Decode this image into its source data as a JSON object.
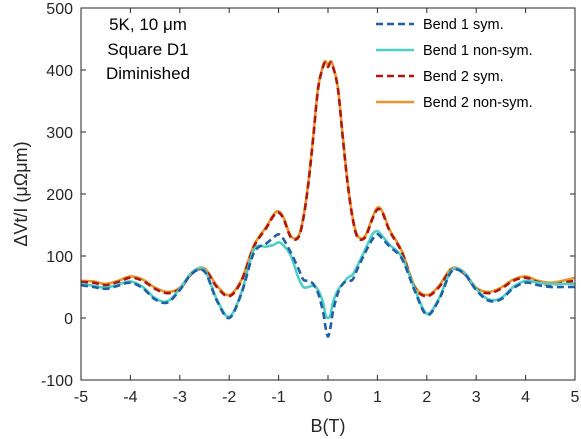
{
  "chart_data": {
    "type": "line",
    "xlabel": "B(T)",
    "ylabel": "ΔVt/I (μΩμm)",
    "xlim": [
      -5,
      5
    ],
    "ylim": [
      -100,
      500
    ],
    "xticks": [
      "-5",
      "-4",
      "-3",
      "-2",
      "-1",
      "0",
      "1",
      "2",
      "3",
      "4",
      "5"
    ],
    "yticks": [
      "-100",
      "0",
      "100",
      "200",
      "300",
      "400",
      "500"
    ],
    "annotation": [
      "5K, 10 μm",
      "Square D1",
      "Diminished"
    ],
    "legend_position": "top-right",
    "grid": false,
    "x": [
      -5,
      -4.75,
      -4.5,
      -4.25,
      -4,
      -3.75,
      -3.5,
      -3.25,
      -3,
      -2.75,
      -2.5,
      -2.25,
      -2,
      -1.75,
      -1.5,
      -1.25,
      -1.1,
      -1,
      -0.9,
      -0.75,
      -0.6,
      -0.5,
      -0.4,
      -0.3,
      -0.2,
      -0.1,
      -0.05,
      0,
      0.05,
      0.1,
      0.2,
      0.3,
      0.4,
      0.5,
      0.6,
      0.75,
      0.9,
      1,
      1.1,
      1.25,
      1.5,
      1.75,
      2,
      2.25,
      2.5,
      2.75,
      3,
      3.25,
      3.5,
      3.75,
      4,
      4.25,
      4.5,
      4.75,
      5
    ],
    "series": [
      {
        "name": "Bend 1 sym.",
        "color": "#1f5fa8",
        "dash": "dashed",
        "values": [
          53,
          50,
          47,
          52,
          57,
          48,
          30,
          25,
          45,
          72,
          75,
          28,
          0,
          40,
          105,
          120,
          130,
          135,
          127,
          105,
          80,
          62,
          60,
          55,
          40,
          10,
          -15,
          -30,
          -15,
          10,
          40,
          55,
          60,
          62,
          80,
          105,
          127,
          135,
          128,
          115,
          95,
          45,
          5,
          30,
          75,
          72,
          45,
          28,
          30,
          48,
          57,
          53,
          50,
          50,
          50
        ]
      },
      {
        "name": "Bend 1 non-sym.",
        "color": "#4fd0c6",
        "dash": "solid",
        "values": [
          55,
          52,
          49,
          54,
          59,
          50,
          32,
          27,
          47,
          74,
          77,
          30,
          2,
          42,
          110,
          115,
          118,
          122,
          117,
          100,
          65,
          50,
          50,
          52,
          45,
          25,
          5,
          0,
          5,
          25,
          45,
          55,
          65,
          70,
          85,
          110,
          135,
          140,
          132,
          118,
          98,
          48,
          7,
          32,
          77,
          74,
          47,
          30,
          32,
          50,
          60,
          57,
          55,
          55,
          55
        ]
      },
      {
        "name": "Bend 2 sym.",
        "color": "#b2150f",
        "dash": "dashed",
        "values": [
          58,
          57,
          53,
          58,
          65,
          60,
          47,
          40,
          47,
          72,
          78,
          50,
          35,
          60,
          115,
          145,
          165,
          170,
          160,
          130,
          130,
          160,
          215,
          290,
          370,
          405,
          412,
          405,
          412,
          405,
          370,
          290,
          215,
          160,
          130,
          130,
          160,
          175,
          170,
          140,
          105,
          50,
          35,
          50,
          78,
          72,
          47,
          40,
          47,
          60,
          65,
          58,
          53,
          57,
          60
        ]
      },
      {
        "name": "Bend 2 non-sym.",
        "color": "#e8962e",
        "dash": "solid",
        "values": [
          60,
          59,
          55,
          60,
          67,
          62,
          49,
          42,
          49,
          74,
          80,
          52,
          37,
          62,
          117,
          147,
          167,
          172,
          162,
          132,
          132,
          162,
          217,
          292,
          372,
          407,
          414,
          407,
          414,
          407,
          372,
          292,
          217,
          162,
          132,
          132,
          162,
          178,
          172,
          142,
          107,
          52,
          37,
          52,
          80,
          74,
          49,
          42,
          49,
          62,
          67,
          60,
          57,
          60,
          65
        ]
      }
    ]
  }
}
